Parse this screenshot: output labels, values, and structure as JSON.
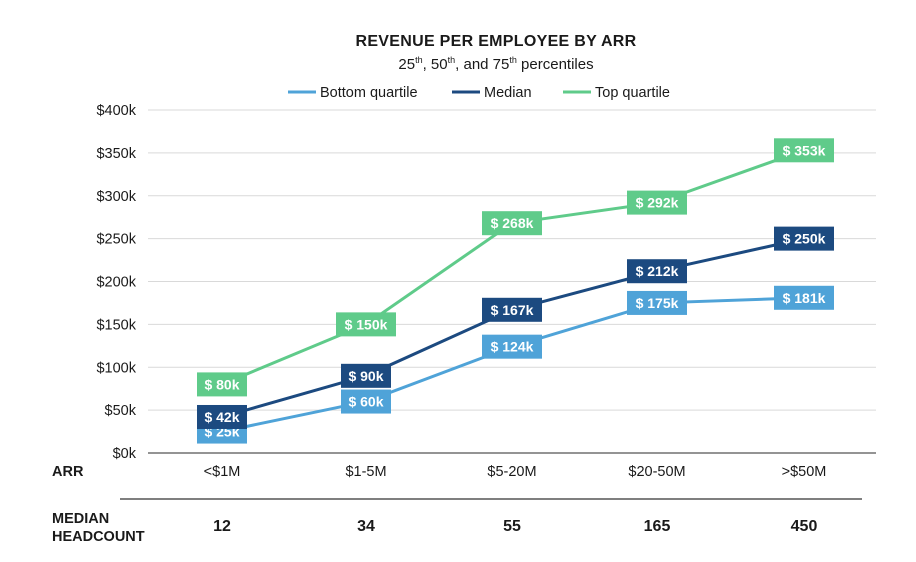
{
  "chart_data": {
    "type": "line",
    "title": "REVENUE PER EMPLOYEE BY ARR",
    "subtitle": {
      "parts": [
        "25",
        "th",
        ", 50",
        "th",
        ", and 75",
        "th",
        " percentiles"
      ]
    },
    "row_header_x": "ARR",
    "categories": [
      "<$1M",
      "$1-5M",
      "$5-20M",
      "$20-50M",
      ">$50M"
    ],
    "ylim": [
      0,
      400
    ],
    "yticks": [
      {
        "value": 0,
        "label": "$0k"
      },
      {
        "value": 50,
        "label": "$50k"
      },
      {
        "value": 100,
        "label": "$100k"
      },
      {
        "value": 150,
        "label": "$150k"
      },
      {
        "value": 200,
        "label": "$200k"
      },
      {
        "value": 250,
        "label": "$250k"
      },
      {
        "value": 300,
        "label": "$300k"
      },
      {
        "value": 350,
        "label": "$350k"
      },
      {
        "value": 400,
        "label": "$400k"
      }
    ],
    "grid": true,
    "legend_position": "top",
    "series": [
      {
        "name": "Bottom quartile",
        "color": "#4fa3d8",
        "values": [
          25,
          60,
          124,
          175,
          181
        ],
        "labels": [
          "$ 25k",
          "$ 60k",
          "$ 124k",
          "$ 175k",
          "$ 181k"
        ]
      },
      {
        "name": "Median",
        "color": "#1c4a80",
        "values": [
          42,
          90,
          167,
          212,
          250
        ],
        "labels": [
          "$ 42k",
          "$ 90k",
          "$ 167k",
          "$ 212k",
          "$ 250k"
        ]
      },
      {
        "name": "Top quartile",
        "color": "#5fcb8a",
        "values": [
          80,
          150,
          268,
          292,
          353
        ],
        "labels": [
          "$ 80k",
          "$ 150k",
          "$ 268k",
          "$ 292k",
          "$ 353k"
        ]
      }
    ],
    "headcount": {
      "label_line1": "MEDIAN",
      "label_line2": "HEADCOUNT",
      "values": [
        "12",
        "34",
        "55",
        "165",
        "450"
      ]
    }
  }
}
